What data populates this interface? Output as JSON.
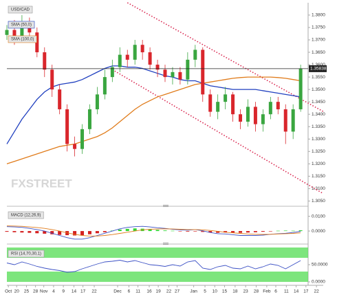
{
  "chart_data": [
    {
      "type": "candlestick",
      "title": "USD/CAD",
      "watermark": "FXSTREET",
      "up_color": "#3aa640",
      "down_color": "#d9262c",
      "open": [
        1.372,
        1.374,
        1.37,
        1.377,
        1.373,
        1.365,
        1.358,
        1.35,
        1.342,
        1.328,
        1.326,
        1.334,
        1.342,
        1.348,
        1.355,
        1.359,
        1.364,
        1.362,
        1.368,
        1.365,
        1.36,
        1.358,
        1.355,
        1.357,
        1.354,
        1.362,
        1.366,
        1.348,
        1.341,
        1.345,
        1.348,
        1.34,
        1.337,
        1.343,
        1.336,
        1.34,
        1.345,
        1.342,
        1.333,
        1.342
      ],
      "high": [
        1.376,
        1.378,
        1.38,
        1.379,
        1.375,
        1.367,
        1.36,
        1.352,
        1.344,
        1.331,
        1.336,
        1.344,
        1.351,
        1.358,
        1.362,
        1.367,
        1.366,
        1.37,
        1.37,
        1.367,
        1.362,
        1.36,
        1.359,
        1.359,
        1.365,
        1.368,
        1.367,
        1.35,
        1.348,
        1.351,
        1.349,
        1.342,
        1.346,
        1.345,
        1.342,
        1.347,
        1.347,
        1.344,
        1.344,
        1.36
      ],
      "low": [
        1.37,
        1.368,
        1.369,
        1.37,
        1.363,
        1.355,
        1.347,
        1.34,
        1.325,
        1.323,
        1.324,
        1.332,
        1.34,
        1.346,
        1.353,
        1.357,
        1.359,
        1.36,
        1.362,
        1.358,
        1.355,
        1.353,
        1.352,
        1.352,
        1.352,
        1.359,
        1.345,
        1.339,
        1.338,
        1.342,
        1.337,
        1.334,
        1.335,
        1.333,
        1.333,
        1.338,
        1.34,
        1.328,
        1.33,
        1.341
      ],
      "close": [
        1.374,
        1.37,
        1.377,
        1.373,
        1.365,
        1.358,
        1.35,
        1.342,
        1.328,
        1.326,
        1.334,
        1.342,
        1.348,
        1.355,
        1.359,
        1.364,
        1.362,
        1.368,
        1.365,
        1.36,
        1.358,
        1.355,
        1.357,
        1.354,
        1.362,
        1.366,
        1.348,
        1.341,
        1.345,
        1.348,
        1.34,
        1.337,
        1.343,
        1.336,
        1.34,
        1.345,
        1.342,
        1.333,
        1.342,
        1.3584
      ],
      "series": [
        {
          "name": "SMA (50,0)",
          "color": "#1f3fbf",
          "values": [
            1.328,
            1.333,
            1.338,
            1.342,
            1.346,
            1.349,
            1.351,
            1.352,
            1.3525,
            1.353,
            1.354,
            1.3555,
            1.357,
            1.3585,
            1.3595,
            1.3595,
            1.359,
            1.359,
            1.3585,
            1.3575,
            1.3565,
            1.3555,
            1.355,
            1.354,
            1.3535,
            1.3535,
            1.3525,
            1.3515,
            1.351,
            1.3505,
            1.35,
            1.35,
            1.35,
            1.35,
            1.3495,
            1.349,
            1.3485,
            1.348,
            1.3475,
            1.347
          ]
        },
        {
          "name": "SMA (100,0)",
          "color": "#e07b1a",
          "values": [
            1.32,
            1.321,
            1.322,
            1.323,
            1.324,
            1.325,
            1.326,
            1.327,
            1.3275,
            1.328,
            1.329,
            1.33,
            1.331,
            1.3325,
            1.3345,
            1.337,
            1.3395,
            1.342,
            1.344,
            1.3455,
            1.347,
            1.348,
            1.349,
            1.35,
            1.351,
            1.352,
            1.3525,
            1.353,
            1.3535,
            1.354,
            1.3545,
            1.3548,
            1.355,
            1.355,
            1.355,
            1.355,
            1.3548,
            1.3545,
            1.354,
            1.3535
          ]
        }
      ],
      "trendlines": [
        {
          "color": "#d9264f",
          "x": [
            16,
            42
          ],
          "y": [
            1.385,
            1.3411
          ]
        },
        {
          "color": "#d9264f",
          "x": [
            14,
            42
          ],
          "y": [
            1.358,
            1.308
          ]
        }
      ],
      "last_price": {
        "value": 1.35838,
        "label": "1.35838"
      },
      "xlim": [
        0,
        42
      ],
      "ylim": [
        1.304,
        1.3847
      ],
      "yticks": [
        {
          "value": 1.305,
          "label": "1.3050"
        },
        {
          "value": 1.31,
          "label": "1.3100"
        },
        {
          "value": 1.315,
          "label": "1.3150"
        },
        {
          "value": 1.32,
          "label": "1.3200"
        },
        {
          "value": 1.325,
          "label": "1.3250"
        },
        {
          "value": 1.33,
          "label": "1.3300"
        },
        {
          "value": 1.335,
          "label": "1.3350"
        },
        {
          "value": 1.34,
          "label": "1.3400"
        },
        {
          "value": 1.345,
          "label": "1.3450"
        },
        {
          "value": 1.35,
          "label": "1.3500"
        },
        {
          "value": 1.355,
          "label": "1.3550"
        },
        {
          "value": 1.36,
          "label": "1.3600"
        },
        {
          "value": 1.365,
          "label": "1.3650"
        },
        {
          "value": 1.37,
          "label": "1.3700"
        },
        {
          "value": 1.375,
          "label": "1.3750"
        },
        {
          "value": 1.38,
          "label": "1.3800"
        }
      ],
      "xticks": [
        {
          "value": 0.2,
          "label": "Oct"
        },
        {
          "value": 1.3,
          "label": "20"
        },
        {
          "value": 2.6,
          "label": "25"
        },
        {
          "value": 3.8,
          "label": "28"
        },
        {
          "value": 4.9,
          "label": "Nov"
        },
        {
          "value": 6.2,
          "label": "4"
        },
        {
          "value": 7.5,
          "label": "9"
        },
        {
          "value": 8.9,
          "label": "14"
        },
        {
          "value": 10.1,
          "label": "17"
        },
        {
          "value": 11.6,
          "label": "22"
        },
        {
          "value": 14.7,
          "label": "Dec"
        },
        {
          "value": 16.2,
          "label": "6"
        },
        {
          "value": 17.4,
          "label": "11"
        },
        {
          "value": 18.9,
          "label": "16"
        },
        {
          "value": 20.1,
          "label": "19"
        },
        {
          "value": 21.5,
          "label": "22"
        },
        {
          "value": 22.6,
          "label": "27"
        },
        {
          "value": 24.8,
          "label": "Jan"
        },
        {
          "value": 26.3,
          "label": "5"
        },
        {
          "value": 27.6,
          "label": "10"
        },
        {
          "value": 28.9,
          "label": "15"
        },
        {
          "value": 30.3,
          "label": "18"
        },
        {
          "value": 31.7,
          "label": "23"
        },
        {
          "value": 33.1,
          "label": "28"
        },
        {
          "value": 34.5,
          "label": "Feb"
        },
        {
          "value": 35.7,
          "label": "6"
        },
        {
          "value": 37.1,
          "label": "11"
        },
        {
          "value": 38.4,
          "label": "14"
        },
        {
          "value": 39.7,
          "label": "17"
        },
        {
          "value": 41.1,
          "label": "22"
        }
      ]
    },
    {
      "type": "macd",
      "title": "MACD (12,26,9)",
      "up_color": "#33d633",
      "down_color": "#d42020",
      "histogram": [
        -0.0005,
        -0.0008,
        -0.001,
        -0.0012,
        -0.0015,
        -0.0018,
        -0.0022,
        -0.0026,
        -0.0028,
        -0.003,
        -0.0028,
        -0.0022,
        -0.0015,
        -0.0008,
        0.0003,
        0.001,
        0.0015,
        0.0018,
        0.0016,
        0.0012,
        0.0008,
        0.0004,
        0.0002,
        -0.0002,
        -0.0004,
        -0.0003,
        -0.0006,
        -0.001,
        -0.0012,
        -0.001,
        -0.0011,
        -0.0012,
        -0.001,
        -0.0008,
        -0.0005,
        -0.0002,
        0.0002,
        0.0003,
        0.0002,
        0.0005
      ],
      "series": [
        {
          "color": "#3a4fc4",
          "values": [
            0.003,
            0.0028,
            0.0025,
            0.0018,
            0.001,
            0.0,
            -0.0015,
            -0.003,
            -0.0045,
            -0.0055,
            -0.0055,
            -0.0045,
            -0.003,
            -0.0015,
            0.0,
            0.0015,
            0.0025,
            0.003,
            0.0032,
            0.0028,
            0.0022,
            0.0018,
            0.0012,
            0.0008,
            0.0006,
            0.001,
            0.0002,
            -0.001,
            -0.0018,
            -0.002,
            -0.0025,
            -0.003,
            -0.003,
            -0.003,
            -0.0028,
            -0.0022,
            -0.0018,
            -0.0015,
            -0.001,
            -0.0002
          ]
        },
        {
          "color": "#e07b1a",
          "values": [
            0.0035,
            0.0034,
            0.0032,
            0.0028,
            0.0024,
            0.0018,
            0.001,
            0.0,
            -0.0012,
            -0.0022,
            -0.003,
            -0.0034,
            -0.0034,
            -0.003,
            -0.0024,
            -0.0016,
            -0.0008,
            0.0,
            0.0008,
            0.0012,
            0.0014,
            0.0015,
            0.0014,
            0.0012,
            0.001,
            0.001,
            0.0008,
            0.0004,
            -0.0002,
            -0.0008,
            -0.0012,
            -0.0016,
            -0.002,
            -0.0022,
            -0.0023,
            -0.0022,
            -0.002,
            -0.0018,
            -0.0016,
            -0.0012
          ]
        }
      ],
      "ylim": [
        -0.0065,
        0.0145
      ],
      "yticks": [
        {
          "value": 0.01,
          "label": "0.0100"
        },
        {
          "value": 0,
          "label": "0.0000"
        }
      ]
    },
    {
      "type": "line",
      "title": "RSI (14,70,30,1)",
      "color": "#3a4fc4",
      "band_color": "#66e066",
      "levels": [
        70,
        30
      ],
      "values": [
        55,
        50,
        58,
        52,
        45,
        40,
        36,
        33,
        28,
        30,
        38,
        45,
        52,
        58,
        60,
        63,
        58,
        62,
        56,
        50,
        48,
        45,
        50,
        46,
        58,
        62,
        40,
        36,
        44,
        48,
        40,
        38,
        46,
        38,
        44,
        52,
        48,
        38,
        50,
        62
      ],
      "ylim": [
        0,
        100
      ],
      "yticks": [
        {
          "value": 50,
          "label": "50.0000"
        },
        {
          "value": 0,
          "label": "0.0000"
        }
      ]
    }
  ]
}
